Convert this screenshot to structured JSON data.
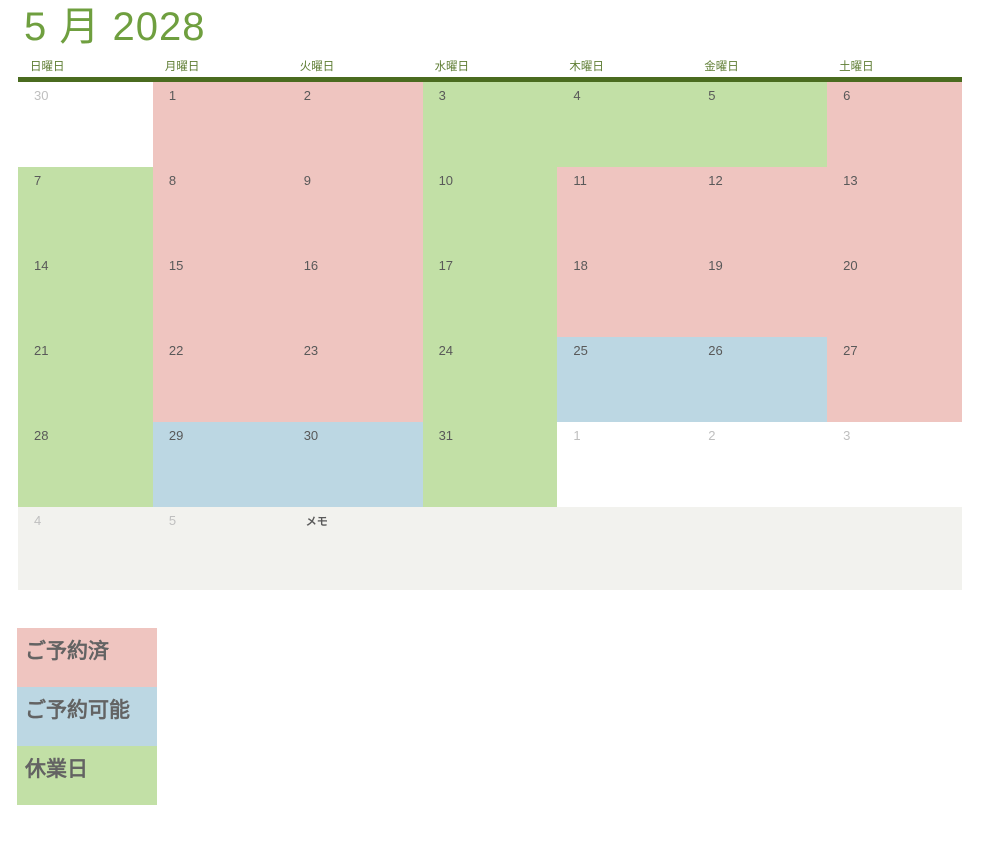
{
  "title": "5 月 2028",
  "colors": {
    "reserved": "#efc5c0",
    "available": "#bcd7e3",
    "closed": "#c2e0a6",
    "memo_bg": "#f2f2ee",
    "title_green": "#6f9f3f",
    "rule_green": "#4a6b1f",
    "header_text": "#5e7d33",
    "day_text": "#595959",
    "muted_text": "#bfbfbf"
  },
  "weekdays": [
    "日曜日",
    "月曜日",
    "火曜日",
    "水曜日",
    "木曜日",
    "金曜日",
    "土曜日"
  ],
  "calendar": {
    "rows": [
      {
        "cells": [
          {
            "day": "30",
            "status": "adjacent"
          },
          {
            "day": "1",
            "status": "reserved"
          },
          {
            "day": "2",
            "status": "reserved"
          },
          {
            "day": "3",
            "status": "closed"
          },
          {
            "day": "4",
            "status": "closed"
          },
          {
            "day": "5",
            "status": "closed"
          },
          {
            "day": "6",
            "status": "reserved"
          }
        ]
      },
      {
        "cells": [
          {
            "day": "7",
            "status": "closed"
          },
          {
            "day": "8",
            "status": "reserved"
          },
          {
            "day": "9",
            "status": "reserved"
          },
          {
            "day": "10",
            "status": "closed"
          },
          {
            "day": "11",
            "status": "reserved"
          },
          {
            "day": "12",
            "status": "reserved"
          },
          {
            "day": "13",
            "status": "reserved"
          }
        ]
      },
      {
        "cells": [
          {
            "day": "14",
            "status": "closed"
          },
          {
            "day": "15",
            "status": "reserved"
          },
          {
            "day": "16",
            "status": "reserved"
          },
          {
            "day": "17",
            "status": "closed"
          },
          {
            "day": "18",
            "status": "reserved"
          },
          {
            "day": "19",
            "status": "reserved"
          },
          {
            "day": "20",
            "status": "reserved"
          }
        ]
      },
      {
        "cells": [
          {
            "day": "21",
            "status": "closed"
          },
          {
            "day": "22",
            "status": "reserved"
          },
          {
            "day": "23",
            "status": "reserved"
          },
          {
            "day": "24",
            "status": "closed"
          },
          {
            "day": "25",
            "status": "available"
          },
          {
            "day": "26",
            "status": "available"
          },
          {
            "day": "27",
            "status": "reserved"
          }
        ]
      },
      {
        "cells": [
          {
            "day": "28",
            "status": "closed"
          },
          {
            "day": "29",
            "status": "available"
          },
          {
            "day": "30",
            "status": "available"
          },
          {
            "day": "31",
            "status": "closed"
          },
          {
            "day": "1",
            "status": "adjacent"
          },
          {
            "day": "2",
            "status": "adjacent"
          },
          {
            "day": "3",
            "status": "adjacent"
          }
        ]
      }
    ]
  },
  "memo_row": {
    "day1": "4",
    "day2": "5",
    "label": "メモ"
  },
  "legend": {
    "items": [
      {
        "label": "ご予約済",
        "status": "reserved"
      },
      {
        "label": "ご予約可能",
        "status": "available"
      },
      {
        "label": "休業日",
        "status": "closed"
      }
    ]
  }
}
